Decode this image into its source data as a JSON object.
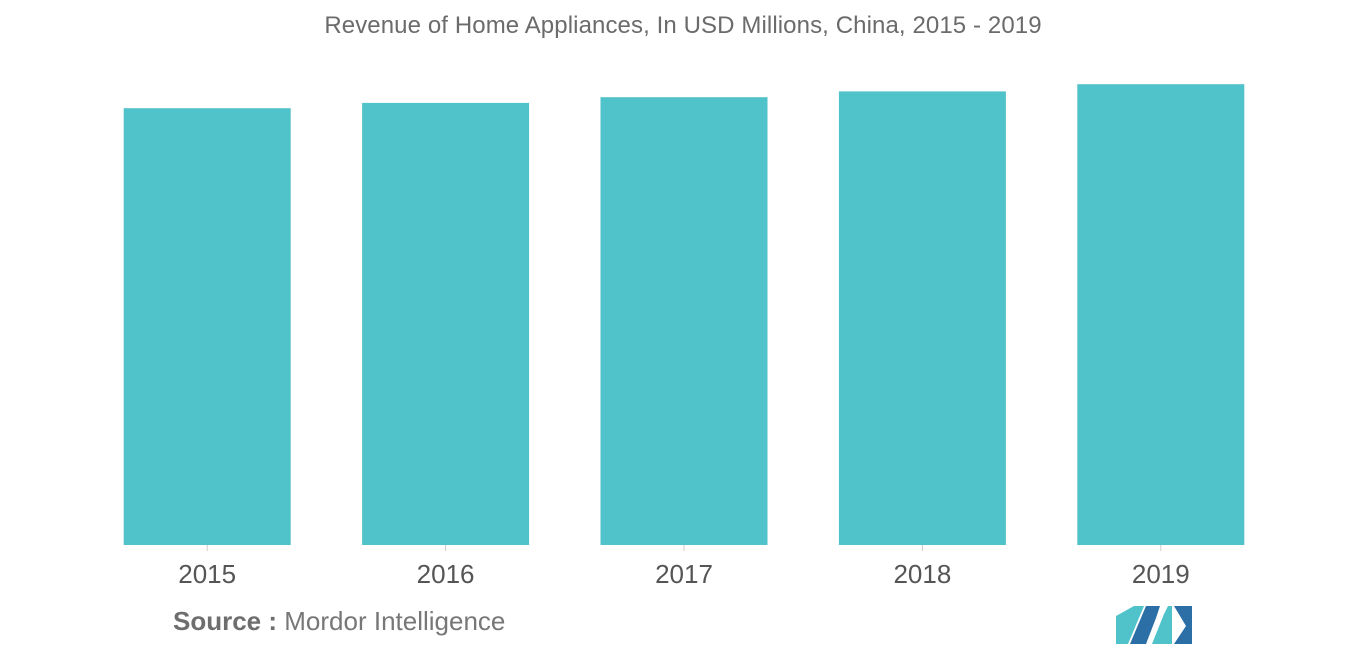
{
  "title": "Revenue of Home Appliances, In USD Millions, China, 2015 - 2019",
  "source": {
    "label": "Source :",
    "text": "Mordor Intelligence"
  },
  "colors": {
    "bar": "#50C2CA",
    "logo_dark": "#2B6FA6",
    "logo_light": "#50C2CA"
  },
  "logo": {
    "icon": "mordor-intelligence-logo-icon"
  },
  "chart_data": {
    "type": "bar",
    "title": "Revenue of Home Appliances, In USD Millions, China, 2015 - 2019",
    "xlabel": "",
    "ylabel": "",
    "categories": [
      "2015",
      "2016",
      "2017",
      "2018",
      "2019"
    ],
    "values": [
      91.0,
      92.1,
      93.3,
      94.5,
      96.0
    ],
    "ylim": [
      0,
      100
    ],
    "grid": false,
    "y_axis_visible": false,
    "legend": "none"
  }
}
